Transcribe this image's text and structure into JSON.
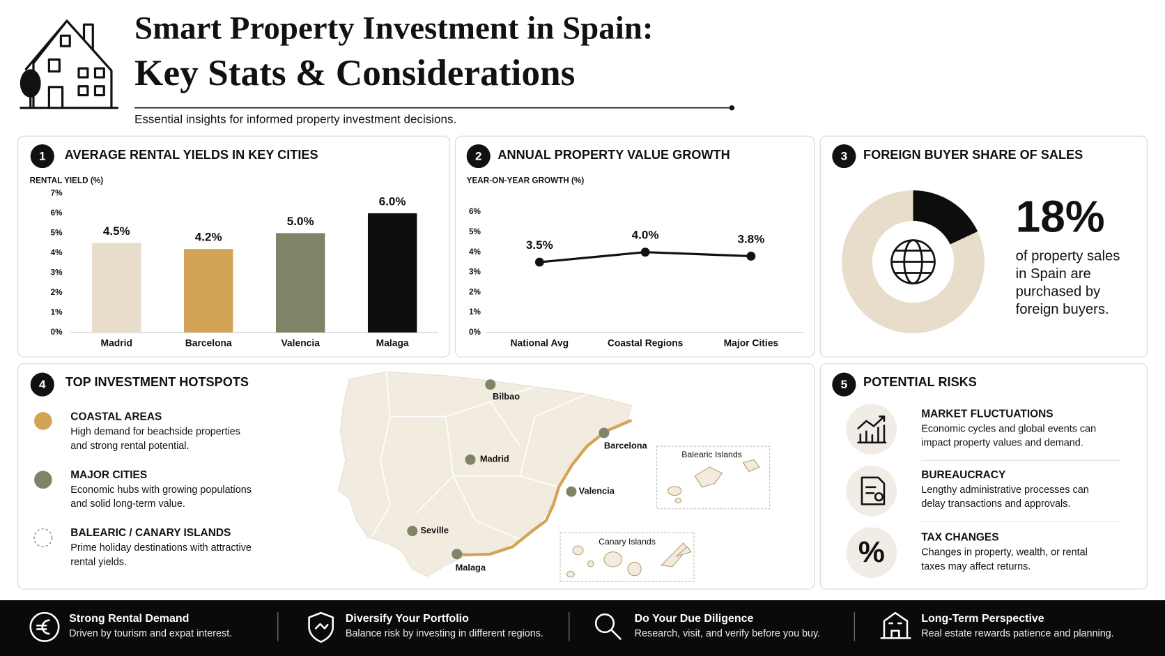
{
  "header": {
    "title_line1": "Smart Property Investment in Spain:",
    "title_line2": "Key Stats & Considerations",
    "subtitle": "Essential insights for informed property investment decisions."
  },
  "chart_data": [
    {
      "type": "bar",
      "number": "1",
      "title": "AVERAGE RENTAL YIELDS IN KEY CITIES",
      "y_label": "RENTAL YIELD (%)",
      "categories": [
        "Madrid",
        "Barcelona",
        "Valencia",
        "Malaga"
      ],
      "values": [
        4.5,
        4.2,
        5.0,
        6.0
      ],
      "value_labels": [
        "4.5%",
        "4.2%",
        "5.0%",
        "6.0%"
      ],
      "colors": [
        "#e8dccb",
        "#d4a456",
        "#7f8468",
        "#0d0d0d"
      ],
      "ylim": [
        0,
        7
      ],
      "yticks": [
        {
          "value": 0,
          "label": "0%"
        },
        {
          "value": 1,
          "label": "1%"
        },
        {
          "value": 2,
          "label": "2%"
        },
        {
          "value": 3,
          "label": "3%"
        },
        {
          "value": 4,
          "label": "4%"
        },
        {
          "value": 5,
          "label": "5%"
        },
        {
          "value": 6,
          "label": "6%"
        },
        {
          "value": 7,
          "label": "7%"
        }
      ]
    },
    {
      "type": "line",
      "number": "2",
      "title": "ANNUAL PROPERTY VALUE GROWTH",
      "y_label": "YEAR-ON-YEAR GROWTH (%)",
      "categories": [
        "National Avg",
        "Coastal Regions",
        "Major Cities"
      ],
      "values": [
        3.5,
        4.0,
        3.8
      ],
      "value_labels": [
        "3.5%",
        "4.0%",
        "3.8%"
      ],
      "color": "#111111",
      "ylim": [
        0,
        6
      ],
      "yticks": [
        {
          "value": 0,
          "label": "0%"
        },
        {
          "value": 1,
          "label": "1%"
        },
        {
          "value": 2,
          "label": "2%"
        },
        {
          "value": 3,
          "label": "3%"
        },
        {
          "value": 4,
          "label": "4%"
        },
        {
          "value": 5,
          "label": "5%"
        },
        {
          "value": 6,
          "label": "6%"
        }
      ]
    },
    {
      "type": "donut",
      "number": "3",
      "title": "FOREIGN BUYER SHARE OF SALES",
      "values": [
        18
      ],
      "value_labels": [
        "18%"
      ],
      "colors": [
        "#0d0d0d"
      ],
      "description": [
        "of property sales",
        "in Spain are",
        "purchased by",
        "foreign buyers."
      ]
    }
  ],
  "hotspots": {
    "number": "4",
    "title": "TOP INVESTMENT HOTSPOTS",
    "items": [
      {
        "title": "COASTAL AREAS",
        "lines": [
          "High demand for beachside properties",
          "and strong rental potential."
        ]
      },
      {
        "title": "MAJOR CITIES",
        "lines": [
          "Economic hubs with growing populations",
          "and solid long-term value."
        ]
      },
      {
        "title": "BALEARIC / CANARY ISLANDS",
        "lines": [
          "Prime holiday destinations with attractive",
          "rental yields."
        ]
      }
    ],
    "map": {
      "cities": [
        "Bilbao",
        "Madrid",
        "Barcelona",
        "Valencia",
        "Seville",
        "Malaga"
      ],
      "islands": [
        "Balearic Islands",
        "Canary Islands"
      ]
    }
  },
  "risks": {
    "number": "5",
    "title": "POTENTIAL RISKS",
    "items": [
      {
        "title": "MARKET FLUCTUATIONS",
        "lines": [
          "Economic cycles and global events can",
          "impact property values and demand."
        ]
      },
      {
        "title": "BUREAUCRACY",
        "lines": [
          "Lengthy administrative processes can",
          "delay transactions and approvals."
        ]
      },
      {
        "title": "TAX CHANGES",
        "lines": [
          "Changes in property, wealth, or rental",
          "taxes may affect returns."
        ]
      }
    ]
  },
  "footer": [
    {
      "title": "Strong Rental Demand",
      "text": "Driven by tourism and expat interest."
    },
    {
      "title": "Diversify Your Portfolio",
      "text": "Balance risk by investing in different regions."
    },
    {
      "title": "Do Your Due Diligence",
      "text": "Research, visit, and verify before you buy."
    },
    {
      "title": "Long-Term Perspective",
      "text": "Real estate rewards patience and planning."
    }
  ]
}
